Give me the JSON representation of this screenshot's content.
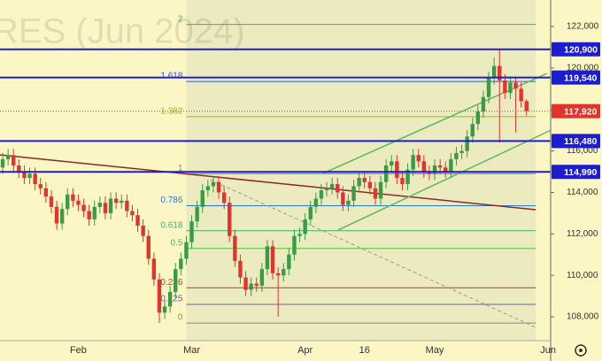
{
  "chart_data": {
    "type": "candlestick",
    "title": "RES (Jun 2024)",
    "categories": [
      null,
      null,
      null,
      null,
      null,
      null,
      null,
      null,
      null,
      null,
      null,
      null,
      null,
      null,
      "Feb",
      null,
      null,
      null,
      null,
      null,
      null,
      null,
      null,
      null,
      null,
      null,
      null,
      null,
      null,
      null,
      null,
      null,
      null,
      null,
      null,
      "Mar",
      null,
      null,
      null,
      null,
      null,
      null,
      null,
      null,
      null,
      null,
      null,
      null,
      null,
      null,
      null,
      null,
      null,
      null,
      null,
      null,
      "Apr",
      null,
      null,
      null,
      null,
      null,
      null,
      null,
      null,
      null,
      null,
      "16",
      null,
      null,
      null,
      null,
      null,
      null,
      null,
      null,
      null,
      null,
      null,
      null,
      "May",
      null,
      null,
      null,
      null,
      null,
      null,
      null,
      null,
      null,
      null,
      null,
      null,
      null,
      null,
      null,
      null,
      null,
      null,
      null,
      null,
      "Jun"
    ],
    "open": [
      115200,
      115600,
      115800,
      115300,
      115000,
      114700,
      114900,
      114400,
      114200,
      113800,
      113300,
      112500,
      113200,
      113900,
      113600,
      113400,
      113100,
      112700,
      113300,
      113500,
      113000,
      113700,
      113500,
      113600,
      113100,
      112900,
      112400,
      111900,
      110800,
      109800,
      108200,
      108500,
      109200,
      110300,
      110800,
      111600,
      112600,
      113300,
      114100,
      114300,
      114500,
      114000,
      113500,
      111900,
      110700,
      109900,
      109300,
      109600,
      109500,
      110300,
      111400,
      110100,
      110000,
      110300,
      111000,
      111900,
      112000,
      112700,
      113300,
      113700,
      114100,
      114200,
      114400,
      114000,
      113400,
      113600,
      114300,
      114700,
      114500,
      114200,
      113700,
      114500,
      115300,
      115500,
      114700,
      114400,
      115100,
      115800,
      115500,
      115000,
      114900,
      115300,
      115200,
      115000,
      115600,
      115900,
      116000,
      116700,
      117300,
      117900,
      118600,
      119500,
      120100,
      119400,
      118800,
      119300,
      119000,
      118400,
      null,
      null,
      null,
      null
    ],
    "high": [
      115900,
      116100,
      116100,
      115600,
      115300,
      115200,
      115200,
      114700,
      114500,
      114100,
      113600,
      113500,
      114200,
      114200,
      113900,
      113700,
      113400,
      113600,
      113800,
      113800,
      114000,
      114000,
      113900,
      113900,
      113400,
      113200,
      112700,
      112200,
      111100,
      110100,
      108800,
      109500,
      110600,
      111100,
      111900,
      112900,
      113600,
      114400,
      114600,
      114800,
      114800,
      114300,
      113800,
      112200,
      111000,
      110200,
      109900,
      109900,
      110600,
      111700,
      111700,
      110400,
      110600,
      111300,
      112200,
      112300,
      113000,
      113600,
      114000,
      114400,
      114500,
      114700,
      114700,
      114300,
      113900,
      114600,
      115000,
      115000,
      114800,
      114500,
      114800,
      115600,
      115800,
      115800,
      115000,
      115400,
      116100,
      116100,
      115800,
      115300,
      115600,
      115600,
      115500,
      115900,
      116200,
      116300,
      117000,
      117600,
      118200,
      118900,
      119800,
      120500,
      120900,
      119700,
      119600,
      119600,
      119300,
      118500,
      null,
      null,
      null,
      null
    ],
    "low": [
      114900,
      115300,
      115000,
      114700,
      114400,
      114400,
      114100,
      113900,
      113500,
      113000,
      112200,
      112200,
      112900,
      113300,
      113100,
      112800,
      112400,
      112400,
      113000,
      112700,
      112700,
      113200,
      113200,
      112800,
      112600,
      112100,
      111600,
      110500,
      109500,
      107700,
      107900,
      108200,
      108900,
      110000,
      110500,
      111300,
      112300,
      113000,
      113800,
      114000,
      113700,
      113200,
      111600,
      110400,
      109600,
      109000,
      109000,
      109200,
      109200,
      110000,
      109800,
      108000,
      109700,
      110000,
      110700,
      111600,
      111700,
      112400,
      113000,
      113400,
      113800,
      113900,
      113700,
      113100,
      113100,
      113300,
      114000,
      114200,
      113900,
      113400,
      113400,
      114200,
      115000,
      114400,
      114100,
      114100,
      114800,
      115200,
      114700,
      114600,
      114600,
      114900,
      114700,
      114700,
      115300,
      115600,
      115700,
      116400,
      117000,
      117600,
      118300,
      119200,
      116400,
      118500,
      118500,
      116900,
      118100,
      117700,
      null,
      null,
      null,
      null
    ],
    "close": [
      115600,
      115800,
      115300,
      115000,
      114700,
      114900,
      114400,
      114200,
      113800,
      113300,
      112500,
      113200,
      113900,
      113600,
      113400,
      113100,
      112700,
      113300,
      113500,
      113000,
      113700,
      113500,
      113600,
      113100,
      112900,
      112400,
      111900,
      110800,
      109800,
      108200,
      108500,
      109200,
      110300,
      110800,
      111600,
      112600,
      113300,
      114100,
      114300,
      114500,
      114000,
      113500,
      111900,
      110700,
      109900,
      109300,
      109600,
      109500,
      110300,
      111400,
      110100,
      110000,
      110300,
      111000,
      111900,
      112000,
      112700,
      113300,
      113700,
      114100,
      114200,
      114400,
      114000,
      113400,
      113600,
      114300,
      114700,
      114500,
      114200,
      113700,
      114500,
      115300,
      115500,
      114700,
      114400,
      115100,
      115800,
      115500,
      115000,
      114900,
      115300,
      115200,
      115000,
      115600,
      115900,
      116000,
      116700,
      117300,
      117900,
      118600,
      119500,
      120100,
      119400,
      118800,
      119300,
      119000,
      118400,
      117920,
      null,
      null,
      null,
      null
    ],
    "up_color": "#3a9a45",
    "down_color": "#e0342c",
    "ylim": [
      106850,
      123280
    ],
    "yticks": [
      {
        "value": 108000,
        "label": "108,000"
      },
      {
        "value": 110000,
        "label": "110,000"
      },
      {
        "value": 112000,
        "label": "112,000"
      },
      {
        "value": 114000,
        "label": "114,000"
      },
      {
        "value": 116000,
        "label": "116,000"
      },
      {
        "value": 118000,
        "label": "118,000"
      },
      {
        "value": 120000,
        "label": "120,000"
      },
      {
        "value": 122000,
        "label": "122,000"
      }
    ],
    "level_color": "#1c1cd0",
    "price_levels": [
      {
        "value": 120900,
        "label": "120,900"
      },
      {
        "value": 119540,
        "label": "119,540"
      },
      {
        "value": 116480,
        "label": "116,480"
      },
      {
        "value": 114990,
        "label": "114,990"
      }
    ],
    "last_price": {
      "value": 117920,
      "label": "117,920",
      "color": "#e0342c"
    },
    "fib": {
      "start": 34,
      "end": 98.7,
      "levels": [
        {
          "value": 122100,
          "label": "2",
          "color": "#3cb371"
        },
        {
          "value": 119350,
          "label": "1.618",
          "color": "#2a5ad0"
        },
        {
          "value": 117650,
          "label": "1.382",
          "color": "#9bb52a"
        },
        {
          "value": 114900,
          "label": "1",
          "color": "#888888"
        },
        {
          "value": 113360,
          "label": "0.786",
          "color": "#2a7ad0"
        },
        {
          "value": 112150,
          "label": "0.618",
          "color": "#3cb371"
        },
        {
          "value": 111300,
          "label": "0.5",
          "color": "#4cc23c"
        },
        {
          "value": 109400,
          "label": "0.236",
          "color": "#c0392b"
        },
        {
          "value": 108600,
          "label": "0.125",
          "color": "#7a5aa0"
        },
        {
          "value": 107700,
          "label": "0",
          "color": "#888888"
        }
      ]
    },
    "trend_lines": [
      {
        "from": [
          -0.5,
          115810
        ],
        "to": [
          98.7,
          113165
        ],
        "color": "#8b2a2a"
      },
      {
        "from": [
          59.3,
          114915
        ],
        "to": [
          100.8,
          119738
        ],
        "color": "#5cb85c"
      },
      {
        "from": [
          62.1,
          112183
        ],
        "to": [
          101.5,
          117000
        ],
        "color": "#5cb85c"
      },
      {
        "from": [
          38.4,
          114616
        ],
        "to": [
          98.7,
          107488
        ],
        "color": "#9a9a9a",
        "dashed": true
      }
    ]
  }
}
